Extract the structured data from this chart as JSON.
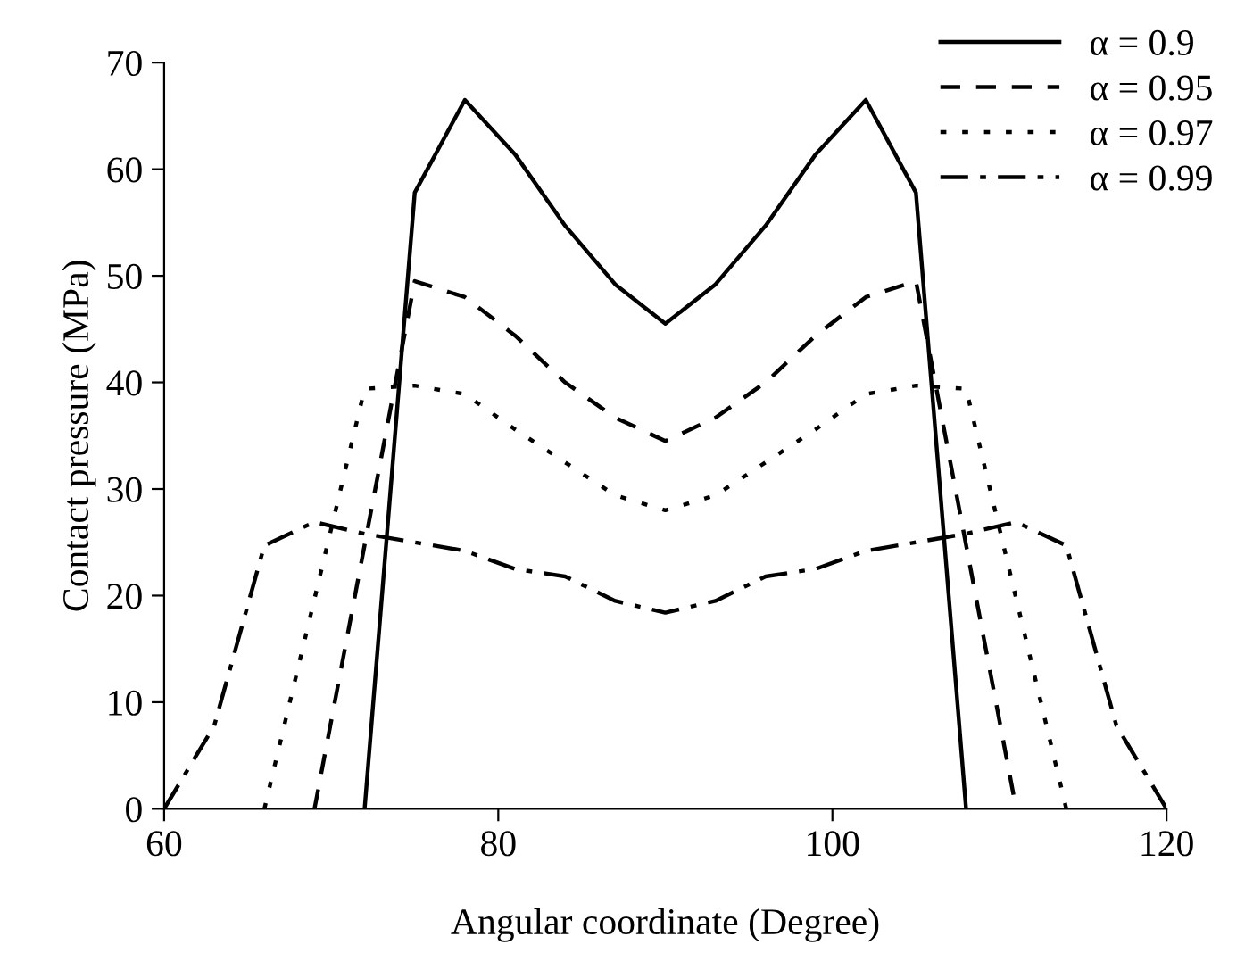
{
  "chart_data": {
    "type": "line",
    "xlabel": "Angular coordinate (Degree)",
    "ylabel": "Contact pressure (MPa)",
    "xlim": [
      60,
      120
    ],
    "xticks": [
      60,
      80,
      100,
      120
    ],
    "ylim": [
      0,
      70
    ],
    "yticks": [
      0,
      10,
      20,
      30,
      40,
      50,
      60,
      70
    ],
    "grid": false,
    "legend": "top right",
    "marker": "none",
    "series": [
      {
        "name": "α = 0.9",
        "color": "#000000",
        "line_style": "solid",
        "x": [
          72,
          75,
          78,
          81,
          84,
          87,
          90,
          93,
          96,
          99,
          102,
          105,
          108
        ],
        "values": [
          0,
          57.8,
          66.5,
          61.4,
          54.7,
          49.2,
          45.5,
          49.2,
          54.7,
          61.4,
          66.5,
          57.8,
          0
        ]
      },
      {
        "name": "α = 0.95",
        "color": "#000000",
        "line_style": "dashed",
        "x": [
          69,
          75,
          78,
          81,
          84,
          87,
          90,
          93,
          96,
          99,
          102,
          105,
          111
        ],
        "values": [
          0,
          49.5,
          48,
          44.4,
          40,
          36.7,
          34.5,
          36.7,
          40,
          44.4,
          48,
          49.5,
          0
        ]
      },
      {
        "name": "α = 0.97",
        "color": "#000000",
        "line_style": "dotted",
        "x": [
          66,
          72,
          75,
          78,
          81,
          84,
          87,
          90,
          93,
          96,
          99,
          102,
          105,
          108,
          114
        ],
        "values": [
          0,
          39.4,
          39.7,
          38.9,
          35.6,
          32.5,
          29.4,
          28,
          29.4,
          32.5,
          35.6,
          38.9,
          39.7,
          39.4,
          0
        ]
      },
      {
        "name": "α = 0.99",
        "color": "#000000",
        "line_style": "dashdot",
        "x": [
          60,
          63,
          66,
          69,
          72,
          75,
          78,
          81,
          84,
          87,
          90,
          93,
          96,
          99,
          102,
          105,
          108,
          111,
          114,
          117,
          120
        ],
        "values": [
          0,
          7.8,
          24.7,
          26.9,
          25.8,
          25,
          24.2,
          22.5,
          21.8,
          19.5,
          18.4,
          19.5,
          21.8,
          22.5,
          24.2,
          25,
          25.8,
          26.9,
          24.7,
          7.8,
          0
        ]
      }
    ]
  }
}
